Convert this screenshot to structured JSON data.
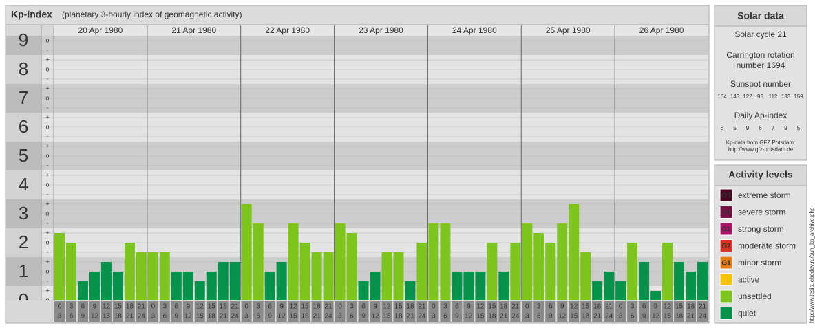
{
  "chart_data": {
    "type": "bar",
    "title": "Kp-index",
    "subtitle": "(planetary 3-hourly index of geomagnetic activity)",
    "ylim": [
      0,
      9.5
    ],
    "yticks": [
      0,
      1,
      2,
      3,
      4,
      5,
      6,
      7,
      8,
      9
    ],
    "sub_ticks": [
      {
        "value": 0,
        "label": "o"
      },
      {
        "value": 0.333,
        "label": "+"
      },
      {
        "value": 0.667,
        "label": "-"
      },
      {
        "value": 1,
        "label": "o"
      },
      {
        "value": 1.333,
        "label": "+"
      },
      {
        "value": 1.667,
        "label": "-"
      },
      {
        "value": 2,
        "label": "o"
      },
      {
        "value": 2.333,
        "label": "+"
      },
      {
        "value": 2.667,
        "label": "-"
      },
      {
        "value": 3,
        "label": "o"
      },
      {
        "value": 3.333,
        "label": "+"
      },
      {
        "value": 3.667,
        "label": "-"
      },
      {
        "value": 4,
        "label": "o"
      },
      {
        "value": 4.333,
        "label": "+"
      },
      {
        "value": 4.667,
        "label": "-"
      },
      {
        "value": 5,
        "label": "o"
      },
      {
        "value": 5.333,
        "label": "+"
      },
      {
        "value": 5.667,
        "label": "-"
      },
      {
        "value": 6,
        "label": "o"
      },
      {
        "value": 6.333,
        "label": "+"
      },
      {
        "value": 6.667,
        "label": "-"
      },
      {
        "value": 7,
        "label": "o"
      },
      {
        "value": 7.333,
        "label": "+"
      },
      {
        "value": 7.667,
        "label": "-"
      },
      {
        "value": 8,
        "label": "o"
      },
      {
        "value": 8.333,
        "label": "+"
      },
      {
        "value": 8.667,
        "label": "-"
      },
      {
        "value": 9,
        "label": "o"
      }
    ],
    "hours": [
      [
        0,
        3
      ],
      [
        3,
        6
      ],
      [
        6,
        9
      ],
      [
        9,
        12
      ],
      [
        12,
        15
      ],
      [
        15,
        18
      ],
      [
        18,
        21
      ],
      [
        21,
        24
      ]
    ],
    "days": [
      {
        "date": "20 Apr 1980",
        "values": [
          2.333,
          2,
          0.667,
          1,
          1.333,
          1,
          2,
          1.667
        ],
        "colors": [
          "#7dc41f",
          "#7dc41f",
          "#06924b",
          "#06924b",
          "#06924b",
          "#06924b",
          "#7dc41f",
          "#7dc41f"
        ]
      },
      {
        "date": "21 Apr 1980",
        "values": [
          1.667,
          1.667,
          1,
          1,
          0.667,
          1,
          1.333,
          1.333
        ],
        "colors": [
          "#7dc41f",
          "#7dc41f",
          "#06924b",
          "#06924b",
          "#06924b",
          "#06924b",
          "#06924b",
          "#06924b"
        ]
      },
      {
        "date": "22 Apr 1980",
        "values": [
          3.333,
          2.667,
          1,
          1.333,
          2.667,
          2,
          1.667,
          1.667
        ],
        "colors": [
          "#7dc41f",
          "#7dc41f",
          "#06924b",
          "#06924b",
          "#7dc41f",
          "#7dc41f",
          "#7dc41f",
          "#7dc41f"
        ]
      },
      {
        "date": "23 Apr 1980",
        "values": [
          2.667,
          2.333,
          0.667,
          1,
          1.667,
          1.667,
          0.667,
          2
        ],
        "colors": [
          "#7dc41f",
          "#7dc41f",
          "#06924b",
          "#06924b",
          "#7dc41f",
          "#7dc41f",
          "#06924b",
          "#7dc41f"
        ]
      },
      {
        "date": "24 Apr 1980",
        "values": [
          2.667,
          2.667,
          1,
          1,
          1,
          2,
          1,
          2
        ],
        "colors": [
          "#7dc41f",
          "#7dc41f",
          "#06924b",
          "#06924b",
          "#06924b",
          "#7dc41f",
          "#06924b",
          "#7dc41f"
        ]
      },
      {
        "date": "25 Apr 1980",
        "values": [
          2.667,
          2.333,
          2,
          2.667,
          3.333,
          1.667,
          0.667,
          1
        ],
        "colors": [
          "#7dc41f",
          "#7dc41f",
          "#7dc41f",
          "#7dc41f",
          "#7dc41f",
          "#7dc41f",
          "#06924b",
          "#06924b"
        ]
      },
      {
        "date": "26 Apr 1980",
        "values": [
          0.667,
          2,
          1.333,
          0.333,
          2,
          1.333,
          1,
          1.333
        ],
        "colors": [
          "#06924b",
          "#7dc41f",
          "#06924b",
          "#06924b",
          "#7dc41f",
          "#06924b",
          "#06924b",
          "#06924b"
        ]
      }
    ],
    "grid": true
  },
  "solar_data": {
    "title": "Solar data",
    "solar_cycle": "Solar cycle 21",
    "carrington": [
      "Carrington rotation",
      "number 1694"
    ],
    "sunspot_title": "Sunspot number",
    "sunspot_numbers": [
      164,
      143,
      122,
      95,
      112,
      133,
      159
    ],
    "ap_title": "Daily Ap-index",
    "ap_index": [
      6,
      5,
      9,
      6,
      7,
      9,
      5
    ],
    "source": [
      "Kp-data from GFZ Potsdam:",
      "http://www.gfz-potsdam.de"
    ]
  },
  "activity_levels": {
    "title": "Activity levels",
    "items": [
      {
        "code": "G5",
        "name": "extreme storm",
        "color": "#4a0424"
      },
      {
        "code": "G4",
        "name": "severe storm",
        "color": "#7a0f48"
      },
      {
        "code": "G3",
        "name": "strong storm",
        "color": "#a8156a"
      },
      {
        "code": "G2",
        "name": "moderate storm",
        "color": "#d9341f"
      },
      {
        "code": "G1",
        "name": "minor storm",
        "color": "#e57a12"
      },
      {
        "name": "active",
        "color": "#f6c400"
      },
      {
        "name": "unsettled",
        "color": "#7dc41f"
      },
      {
        "name": "quiet",
        "color": "#06924b"
      }
    ]
  },
  "watermark": "http://www.tesis.lebedev.ru/sun_kp_archive.php"
}
